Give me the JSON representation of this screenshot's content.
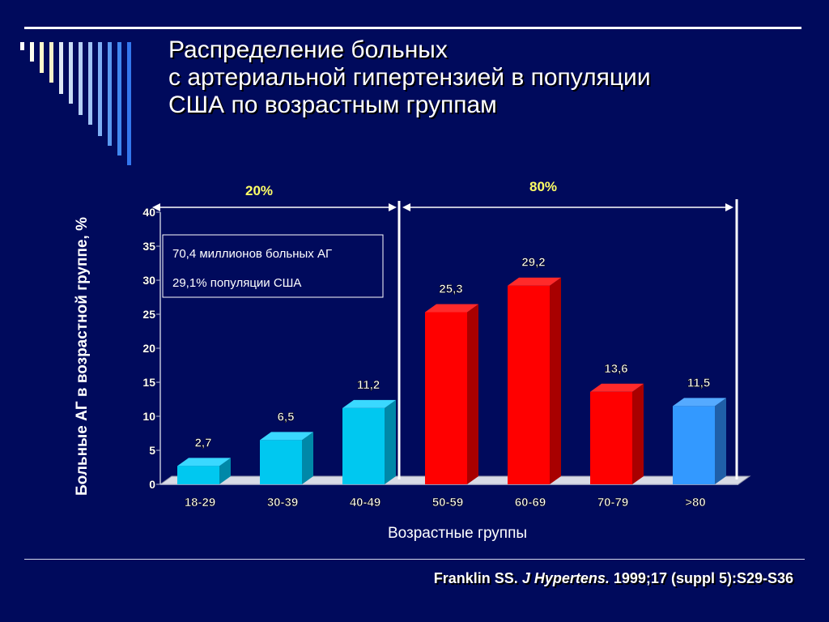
{
  "slide": {
    "title_lines": [
      "Распределение больных",
      "с артериальной гипертензией в популяции",
      "США по возрастным группам"
    ],
    "citation": {
      "author": "Franklin SS.",
      "journal": "J Hypertens.",
      "reference": "1999;17 (suppl 5):S29-S36"
    },
    "colors": {
      "background": "#000a5c",
      "cyan_bar": "#00c8f0",
      "red_bar": "#ff0000",
      "blue_bar": "#3399ff",
      "label_yellow": "#ffff66"
    }
  },
  "chart_data": {
    "type": "bar",
    "categories": [
      "18-29",
      "30-39",
      "40-49",
      "50-59",
      "60-69",
      "70-79",
      ">80"
    ],
    "values": [
      2.7,
      6.5,
      11.2,
      25.3,
      29.2,
      13.6,
      11.5
    ],
    "data_labels": [
      "2,7",
      "6,5",
      "11,2",
      "25,3",
      "29,2",
      "13,6",
      "11,5"
    ],
    "bar_colors": [
      "cyan",
      "cyan",
      "cyan",
      "red",
      "red",
      "red",
      "blue"
    ],
    "xlabel": "Возрастные группы",
    "ylabel": "Больные АГ в возрастной группе, %",
    "ylim": [
      0,
      40
    ],
    "yticks": [
      0,
      5,
      10,
      15,
      20,
      25,
      30,
      35,
      40
    ],
    "grid": false,
    "legend": "none",
    "annotation_box": [
      "70,4 миллионов больных АГ",
      "29,1% популяции США"
    ],
    "brackets": [
      {
        "label": "20%",
        "from": "18-29",
        "to": "40-49"
      },
      {
        "label": "80%",
        "from": "50-59",
        "to": ">80"
      }
    ]
  }
}
